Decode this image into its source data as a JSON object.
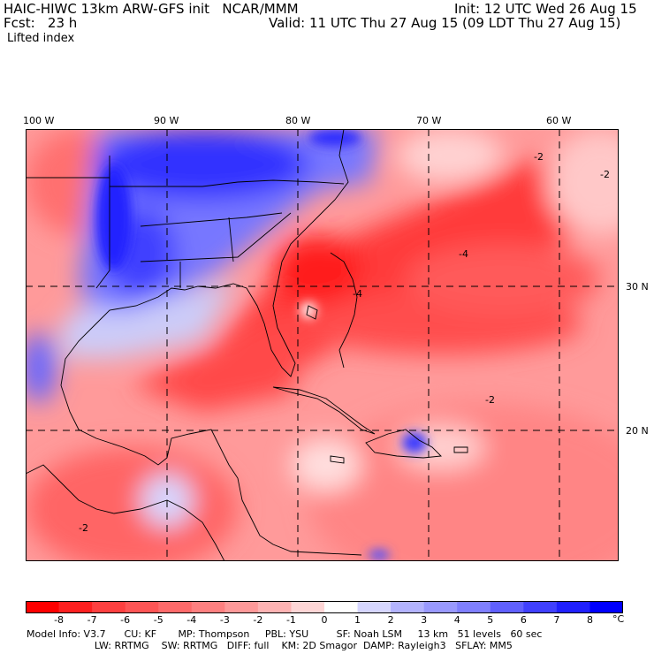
{
  "header": {
    "title": "HAIC-HIWC 13km ARW-GFS init   NCAR/MMM",
    "init": "Init: 12 UTC Wed 26 Aug 15",
    "fcst": "Fcst:   23 h",
    "valid": "Valid: 11 UTC Thu 27 Aug 15 (09 LDT Thu 27 Aug 15)",
    "field": "Lifted index"
  },
  "map": {
    "lon_labels": [
      "100 W",
      "90 W",
      "80 W",
      "70 W",
      "60 W"
    ],
    "lat_labels": [
      "30 N",
      "20 N"
    ],
    "contour_labels": [
      "-2",
      "-4",
      "-2",
      "-2",
      "-4",
      "-2"
    ]
  },
  "colorbar": {
    "ticks": [
      "-8",
      "-7",
      "-6",
      "-5",
      "-4",
      "-3",
      "-2",
      "-1",
      "0",
      "1",
      "2",
      "3",
      "4",
      "5",
      "6",
      "7",
      "8"
    ],
    "unit": "°C",
    "colors": [
      "#ff0000",
      "#ff2020",
      "#ff4040",
      "#ff5555",
      "#ff6a6a",
      "#ff8080",
      "#ff9999",
      "#ffb3b3",
      "#ffd6d6",
      "#ffffff",
      "#d6d6ff",
      "#b3b3ff",
      "#9999ff",
      "#7f7fff",
      "#6060ff",
      "#4040ff",
      "#2020ff",
      "#0000ff"
    ]
  },
  "model_info": {
    "line1": "Model Info: V3.7      CU: KF       MP: Thompson     PBL: YSU         SF: Noah LSM     13 km   51 levels   60 sec",
    "line2": "                      LW: RRTMG    SW: RRTMG   DIFF: full    KM: 2D Smagor  DAMP: Rayleigh3   SFLAY: MM5"
  }
}
